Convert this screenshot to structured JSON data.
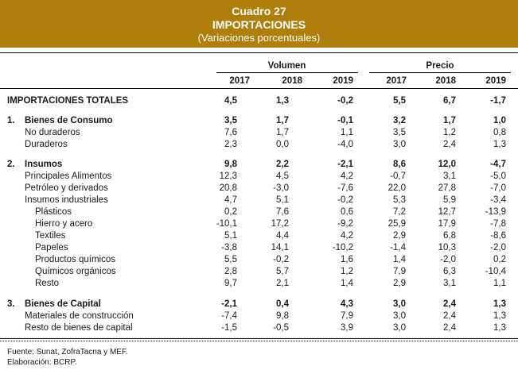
{
  "header": {
    "title": "Cuadro 27",
    "subtitle": "IMPORTACIONES",
    "note": "(Variaciones porcentuales)"
  },
  "columns": {
    "volumen_label": "Volumen",
    "precio_label": "Precio",
    "years": [
      "2017",
      "2018",
      "2019",
      "2017",
      "2018",
      "2019"
    ]
  },
  "rows": [
    {
      "index": "",
      "label": "IMPORTACIONES TOTALES",
      "level": 0,
      "bold": true,
      "values": [
        "4,5",
        "1,3",
        "-0,2",
        "5,5",
        "6,7",
        "-1,7"
      ]
    },
    {
      "index": "1.",
      "label": "Bienes de Consumo",
      "level": 1,
      "bold": true,
      "values": [
        "3,5",
        "1,7",
        "-0,1",
        "3,2",
        "1,7",
        "1,0"
      ]
    },
    {
      "index": "",
      "label": "No duraderos",
      "level": 2,
      "bold": false,
      "values": [
        "7,6",
        "1,7",
        "1,1",
        "3,5",
        "1,2",
        "0,8"
      ]
    },
    {
      "index": "",
      "label": "Duraderos",
      "level": 2,
      "bold": false,
      "values": [
        "2,3",
        "0,0",
        "-4,0",
        "3,0",
        "2,4",
        "1,3"
      ]
    },
    {
      "index": "2.",
      "label": "Insumos",
      "level": 1,
      "bold": true,
      "values": [
        "9,8",
        "2,2",
        "-2,1",
        "8,6",
        "12,0",
        "-4,7"
      ]
    },
    {
      "index": "",
      "label": "Principales Alimentos",
      "level": 2,
      "bold": false,
      "values": [
        "12,3",
        "4,5",
        "4,2",
        "-0,7",
        "3,1",
        "-5,0"
      ]
    },
    {
      "index": "",
      "label": "Petróleo y derivados",
      "level": 2,
      "bold": false,
      "values": [
        "20,8",
        "-3,0",
        "-7,6",
        "22,0",
        "27,8",
        "-7,0"
      ]
    },
    {
      "index": "",
      "label": "Insumos industriales",
      "level": 2,
      "bold": false,
      "values": [
        "4,7",
        "5,1",
        "-0,2",
        "5,3",
        "5,9",
        "-3,4"
      ]
    },
    {
      "index": "",
      "label": "Plásticos",
      "level": 3,
      "bold": false,
      "values": [
        "0,2",
        "7,6",
        "0,6",
        "7,2",
        "12,7",
        "-13,9"
      ]
    },
    {
      "index": "",
      "label": "Hierro y acero",
      "level": 3,
      "bold": false,
      "values": [
        "-10,1",
        "17,2",
        "-9,2",
        "25,9",
        "17,9",
        "-7,8"
      ]
    },
    {
      "index": "",
      "label": "Textiles",
      "level": 3,
      "bold": false,
      "values": [
        "5,1",
        "4,4",
        "4,2",
        "2,9",
        "6,8",
        "-8,6"
      ]
    },
    {
      "index": "",
      "label": "Papeles",
      "level": 3,
      "bold": false,
      "values": [
        "-3,8",
        "14,1",
        "-10,2",
        "-1,4",
        "10,3",
        "-2,0"
      ]
    },
    {
      "index": "",
      "label": "Productos químicos",
      "level": 3,
      "bold": false,
      "values": [
        "5,5",
        "-0,2",
        "1,6",
        "1,4",
        "-2,0",
        "0,2"
      ]
    },
    {
      "index": "",
      "label": "Químicos orgánicos",
      "level": 3,
      "bold": false,
      "values": [
        "2,8",
        "5,7",
        "1,2",
        "7,9",
        "6,3",
        "-10,4"
      ]
    },
    {
      "index": "",
      "label": "Resto",
      "level": 3,
      "bold": false,
      "values": [
        "9,7",
        "2,1",
        "1,4",
        "2,9",
        "3,1",
        "1,1"
      ]
    },
    {
      "index": "3.",
      "label": "Bienes de Capital",
      "level": 1,
      "bold": true,
      "values": [
        "-2,1",
        "0,4",
        "4,3",
        "3,0",
        "2,4",
        "1,3"
      ]
    },
    {
      "index": "",
      "label": "Materiales de construcción",
      "level": 2,
      "bold": false,
      "values": [
        "-7,4",
        "9,8",
        "7,9",
        "3,0",
        "2,4",
        "1,3"
      ]
    },
    {
      "index": "",
      "label": "Resto de bienes de capital",
      "level": 2,
      "bold": false,
      "values": [
        "-1,5",
        "-0,5",
        "3,9",
        "3,0",
        "2,4",
        "1,3"
      ]
    }
  ],
  "footer": {
    "source": "Fuente: Sunat, ZofraTacna y MEF.",
    "prepared": "Elaboración: BCRP."
  }
}
